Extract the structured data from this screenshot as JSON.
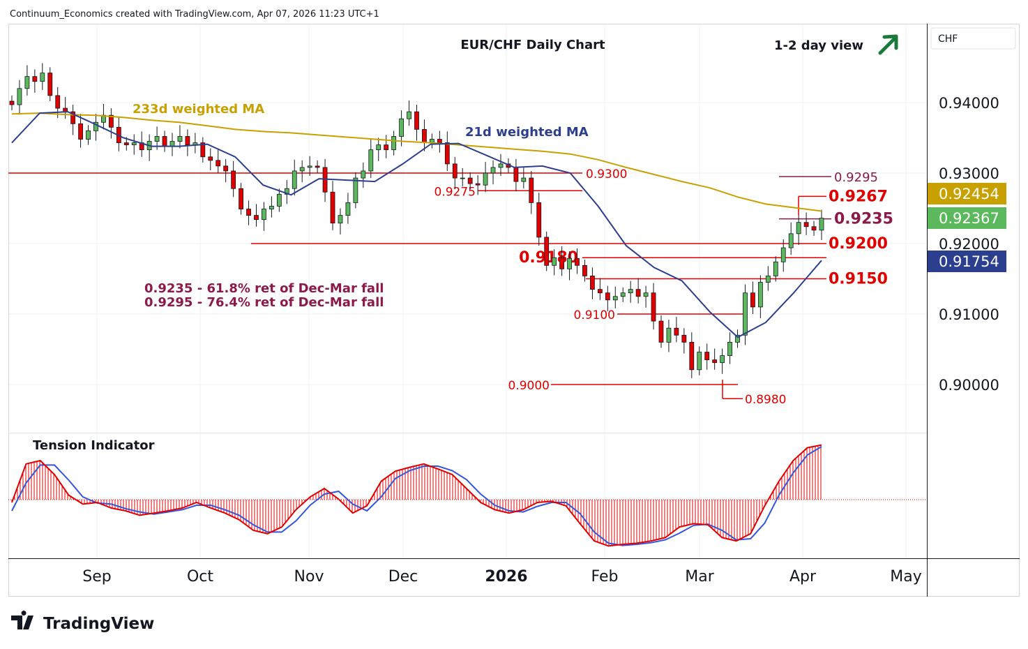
{
  "header": {
    "attribution": "Continuum_Economics created with TradingView.com, Apr 07, 2026 11:23 UTC+1"
  },
  "logo_text": "TradingView",
  "currency": "CHF",
  "chart_data": {
    "type": "candlestick",
    "title": "EUR/CHF Daily Chart",
    "view": "1-2 day view",
    "view_direction": "up",
    "ylim": [
      0.8935,
      0.95
    ],
    "y_ticks": [
      "0.94000",
      "0.93000",
      "0.92000",
      "0.91000",
      "0.90000"
    ],
    "y_tick_values": [
      0.94,
      0.93,
      0.92,
      0.91,
      0.9
    ],
    "x_ticks": [
      "Sep",
      "Oct",
      "Nov",
      "Dec",
      "2026",
      "Feb",
      "Mar",
      "Apr",
      "May"
    ],
    "closes": [
      0.9397,
      0.942,
      0.9437,
      0.943,
      0.9442,
      0.941,
      0.9392,
      0.9387,
      0.937,
      0.9348,
      0.936,
      0.9372,
      0.9382,
      0.9365,
      0.9343,
      0.934,
      0.9343,
      0.9333,
      0.9345,
      0.9352,
      0.9338,
      0.9345,
      0.9352,
      0.934,
      0.9343,
      0.9323,
      0.9318,
      0.931,
      0.9303,
      0.9278,
      0.9249,
      0.924,
      0.9234,
      0.9249,
      0.9253,
      0.927,
      0.9278,
      0.9303,
      0.9308,
      0.931,
      0.9308,
      0.9273,
      0.9229,
      0.924,
      0.9258,
      0.9293,
      0.9303,
      0.9333,
      0.934,
      0.9333,
      0.9352,
      0.9377,
      0.9387,
      0.9362,
      0.9343,
      0.9348,
      0.9343,
      0.9313,
      0.9293,
      0.9293,
      0.9285,
      0.9283,
      0.93,
      0.9308,
      0.9313,
      0.9308,
      0.9288,
      0.9293,
      0.9258,
      0.9209,
      0.9169,
      0.918,
      0.9164,
      0.9179,
      0.9169,
      0.9154,
      0.9135,
      0.913,
      0.912,
      0.9125,
      0.913,
      0.9135,
      0.9125,
      0.913,
      0.909,
      0.906,
      0.908,
      0.907,
      0.906,
      0.9021,
      0.9046,
      0.9035,
      0.9031,
      0.9041,
      0.906,
      0.907,
      0.913,
      0.911,
      0.9145,
      0.9154,
      0.9174,
      0.9194,
      0.9214,
      0.923,
      0.9224,
      0.9219,
      0.9236
    ],
    "ma233": {
      "name": "233d weighted MA",
      "color": "#c8a000",
      "last": "0.92454",
      "values": [
        0.9384,
        0.9385,
        0.9383,
        0.9382,
        0.9379,
        0.9375,
        0.9372,
        0.9367,
        0.9362,
        0.9359,
        0.9357,
        0.9354,
        0.9351,
        0.9348,
        0.9345,
        0.9343,
        0.934,
        0.9337,
        0.9334,
        0.9331,
        0.9327,
        0.9319,
        0.9308,
        0.9298,
        0.9288,
        0.9279,
        0.9266,
        0.9256,
        0.9251,
        0.9246
      ]
    },
    "ma21": {
      "name": "21d weighted MA",
      "color": "#2c3f8f",
      "last": "0.91754",
      "values": [
        0.9343,
        0.9385,
        0.9387,
        0.9369,
        0.935,
        0.9338,
        0.9338,
        0.9341,
        0.9323,
        0.9283,
        0.9269,
        0.9292,
        0.929,
        0.9288,
        0.9313,
        0.9341,
        0.9342,
        0.9325,
        0.9308,
        0.931,
        0.93,
        0.9253,
        0.9197,
        0.9166,
        0.9147,
        0.9103,
        0.9067,
        0.9088,
        0.913,
        0.9176
      ]
    },
    "last_price": {
      "value": "0.92367",
      "color": "#5cb85c"
    },
    "levels": [
      {
        "value": 0.93,
        "text": "0.9300"
      },
      {
        "value": 0.9275,
        "text": "0.9275"
      },
      {
        "value": 0.92,
        "text": "0.9200"
      },
      {
        "value": 0.918,
        "text": "0.9180"
      },
      {
        "value": 0.915,
        "text": "0.9150"
      },
      {
        "value": 0.91,
        "text": "0.9100"
      },
      {
        "value": 0.9,
        "text": "0.9000"
      },
      {
        "value": 0.898,
        "text": "0.8980"
      },
      {
        "value": 0.9295,
        "text": "0.9295"
      },
      {
        "value": 0.9267,
        "text": "0.9267"
      },
      {
        "value": 0.9235,
        "text": "0.9235"
      }
    ],
    "notes": [
      "0.9235 - 61.8% ret of Dec-Mar fall",
      "0.9295 - 76.4% ret of Dec-Mar fall"
    ],
    "indicator": {
      "name": "Tension Indicator",
      "fast": [
        -0.05,
        0.64,
        0.7,
        0.45,
        0.08,
        -0.08,
        -0.05,
        -0.15,
        -0.2,
        -0.28,
        -0.24,
        -0.2,
        -0.15,
        -0.05,
        -0.15,
        -0.24,
        -0.36,
        -0.55,
        -0.61,
        -0.49,
        -0.18,
        0.05,
        0.2,
        0.01,
        -0.24,
        -0.11,
        0.33,
        0.51,
        0.58,
        0.64,
        0.55,
        0.45,
        0.2,
        -0.05,
        -0.18,
        -0.24,
        -0.18,
        -0.05,
        -0.03,
        -0.11,
        -0.43,
        -0.74,
        -0.83,
        -0.8,
        -0.78,
        -0.74,
        -0.68,
        -0.49,
        -0.43,
        -0.45,
        -0.68,
        -0.74,
        -0.61,
        -0.11,
        0.33,
        0.7,
        0.93,
        0.98
      ],
      "slow": [
        -0.2,
        0.3,
        0.62,
        0.62,
        0.35,
        0.05,
        -0.06,
        -0.08,
        -0.16,
        -0.22,
        -0.26,
        -0.22,
        -0.18,
        -0.1,
        -0.1,
        -0.18,
        -0.28,
        -0.45,
        -0.58,
        -0.58,
        -0.38,
        -0.1,
        0.1,
        0.15,
        -0.08,
        -0.2,
        0.05,
        0.38,
        0.52,
        0.6,
        0.6,
        0.52,
        0.36,
        0.1,
        -0.1,
        -0.2,
        -0.22,
        -0.12,
        -0.05,
        -0.05,
        -0.25,
        -0.58,
        -0.78,
        -0.82,
        -0.8,
        -0.77,
        -0.72,
        -0.6,
        -0.46,
        -0.44,
        -0.55,
        -0.72,
        -0.7,
        -0.42,
        0.08,
        0.48,
        0.8,
        0.95
      ]
    }
  }
}
